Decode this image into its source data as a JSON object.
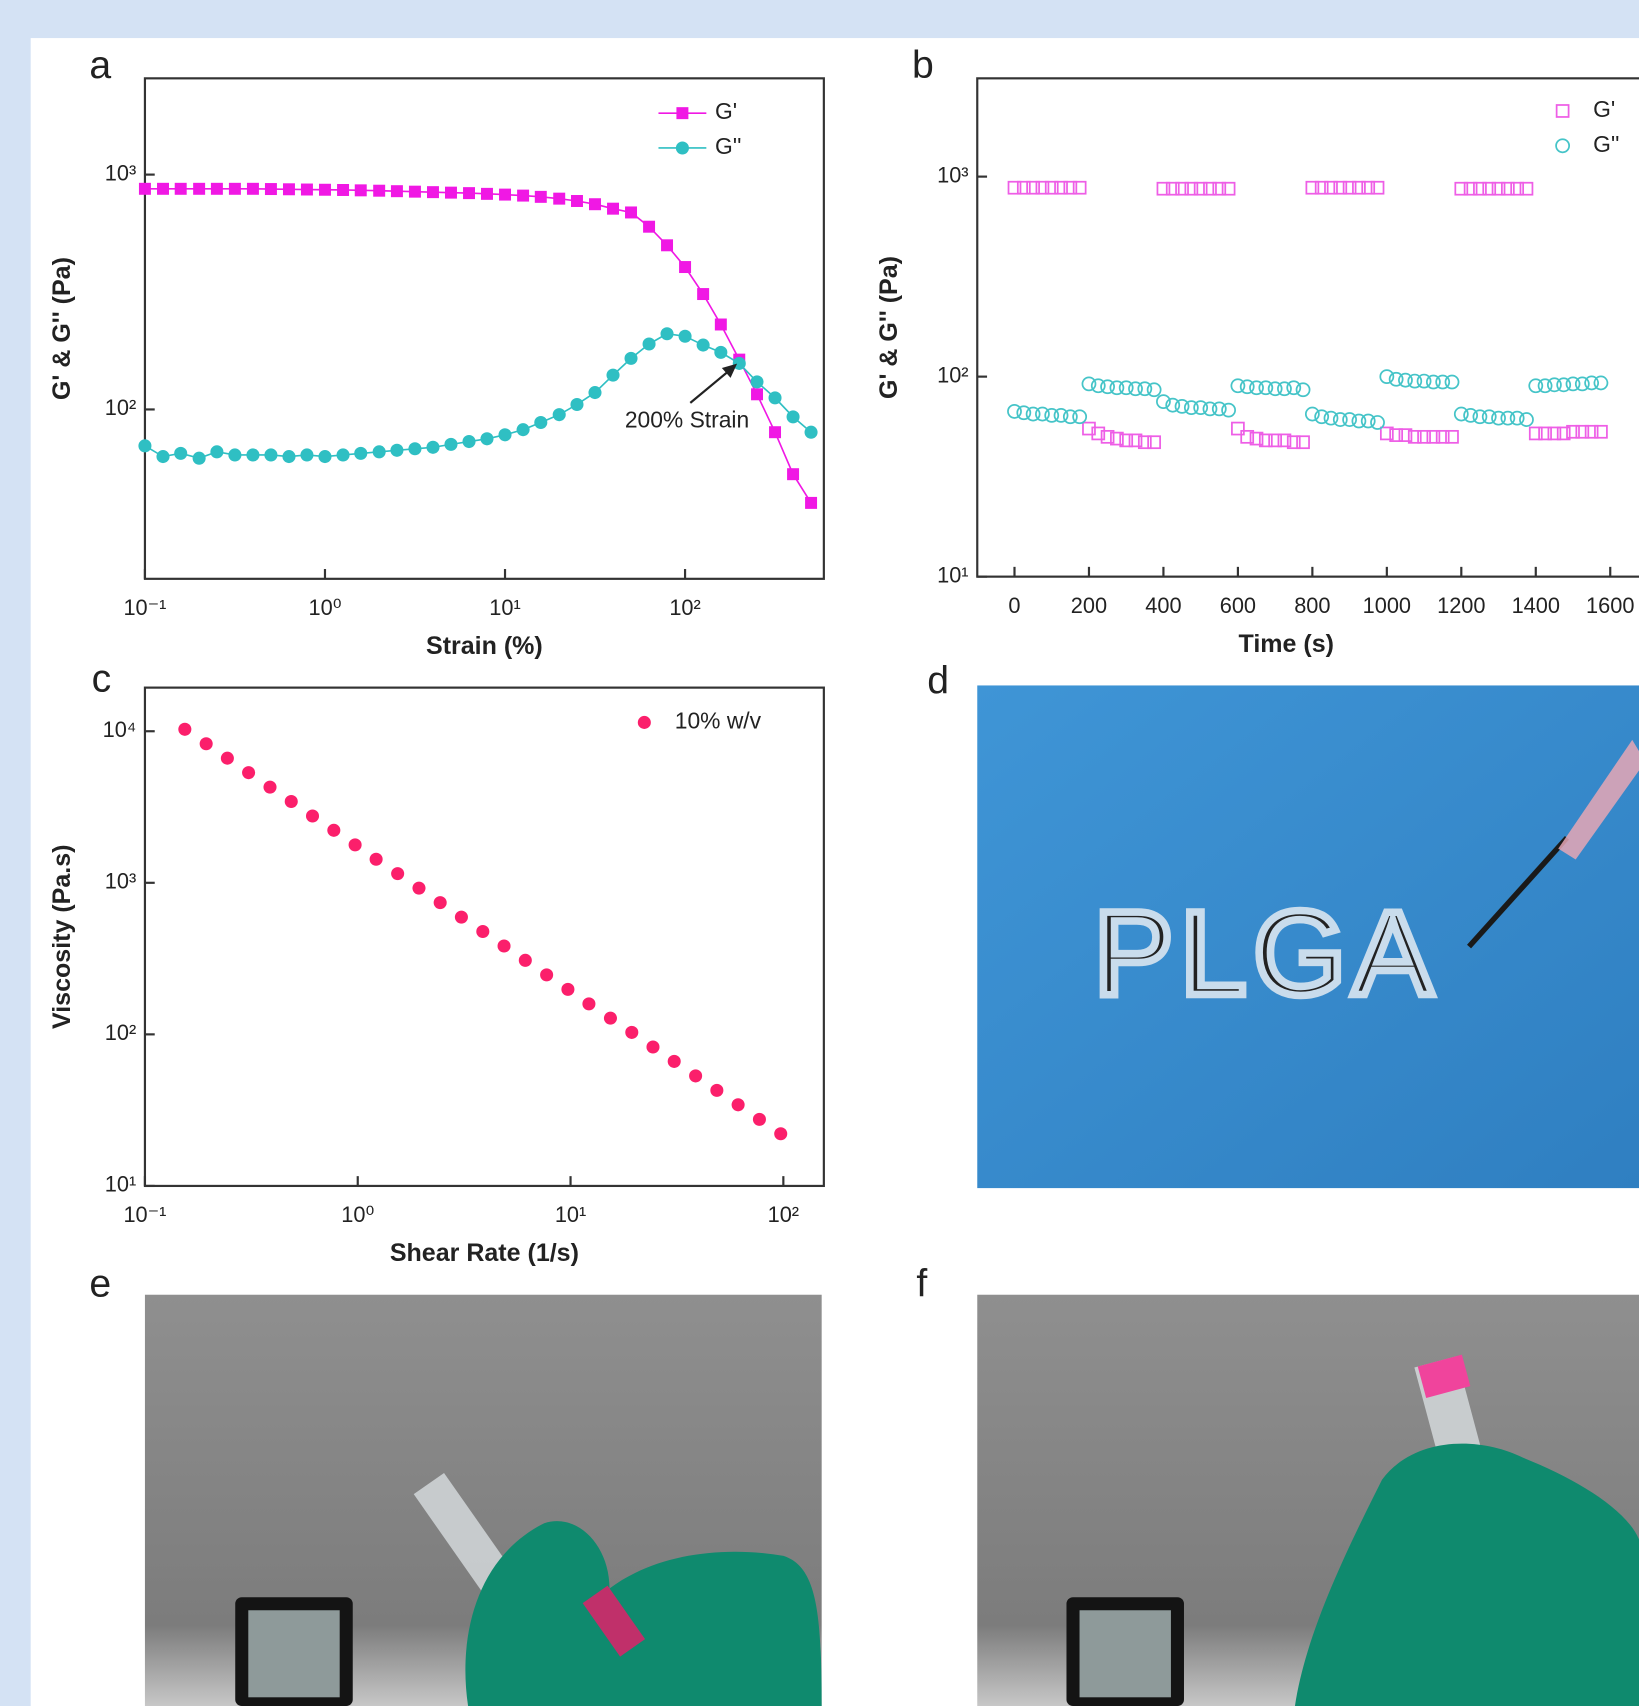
{
  "chart_data": [
    {
      "type": "scatter",
      "panel": "a",
      "xlabel": "Strain (%)",
      "ylabel": "G' & G'' (Pa)",
      "xlog": true,
      "ylog": true,
      "xlim": [
        0.1,
        590
      ],
      "ylim": [
        19,
        2570
      ],
      "xticks": [
        {
          "value": 0.1,
          "label": "10⁻¹"
        },
        {
          "value": 1,
          "label": "10⁰"
        },
        {
          "value": 10,
          "label": "10¹"
        },
        {
          "value": 100,
          "label": "10²"
        }
      ],
      "yticks": [
        {
          "value": 100,
          "label": "10²"
        },
        {
          "value": 1000,
          "label": "10³"
        }
      ],
      "legend": "upper right",
      "x": [
        0.1,
        0.126,
        0.158,
        0.2,
        0.251,
        0.316,
        0.398,
        0.501,
        0.631,
        0.794,
        1,
        1.26,
        1.58,
        2,
        2.51,
        3.16,
        3.98,
        5.01,
        6.31,
        7.94,
        10,
        12.6,
        15.8,
        20,
        25.1,
        31.6,
        39.8,
        50.1,
        63.1,
        79.4,
        100,
        126,
        158,
        200,
        251,
        316,
        398,
        501
      ],
      "series": [
        {
          "name": "G'",
          "color": "#f018e4",
          "marker": "square",
          "filled": true,
          "line": true,
          "values": [
            870,
            870,
            870,
            870,
            870,
            870,
            870,
            868,
            866,
            864,
            862,
            860,
            857,
            854,
            850,
            846,
            842,
            838,
            834,
            828,
            822,
            814,
            804,
            790,
            772,
            748,
            716,
            690,
            600,
            500,
            404,
            310,
            230,
            163,
            116,
            80,
            53,
            40
          ]
        },
        {
          "name": "G''",
          "color": "#2fbfc3",
          "marker": "circle",
          "filled": true,
          "line": true,
          "values": [
            70,
            63,
            65,
            62,
            66,
            64,
            64,
            64,
            63,
            64,
            63,
            64,
            65,
            66,
            67,
            68,
            69,
            71,
            73,
            75,
            78,
            82,
            88,
            95,
            105,
            118,
            140,
            165,
            190,
            210,
            205,
            188,
            175,
            157,
            131,
            112,
            93,
            80
          ]
        }
      ],
      "annotations": [
        {
          "text": "200% Strain",
          "xy": [
            200,
            160
          ]
        }
      ]
    },
    {
      "type": "scatter",
      "panel": "b",
      "xlabel": "Time (s)",
      "ylabel": "G' & G'' (Pa)",
      "ylog": true,
      "xlim": [
        -100,
        1700
      ],
      "ylim": [
        10,
        3100
      ],
      "xticks": [
        0,
        200,
        400,
        600,
        800,
        1000,
        1200,
        1400,
        1600
      ],
      "yticks": [
        {
          "value": 10,
          "label": "10¹"
        },
        {
          "value": 100,
          "label": "10²"
        },
        {
          "value": 1000,
          "label": "10³"
        }
      ],
      "legend": "upper right",
      "x": [
        0,
        25,
        50,
        75,
        100,
        125,
        150,
        175,
        200,
        225,
        250,
        275,
        300,
        325,
        350,
        375,
        400,
        425,
        450,
        475,
        500,
        525,
        550,
        575,
        600,
        625,
        650,
        675,
        700,
        725,
        750,
        775,
        800,
        825,
        850,
        875,
        900,
        925,
        950,
        975,
        1000,
        1025,
        1050,
        1075,
        1100,
        1125,
        1150,
        1175,
        1200,
        1225,
        1250,
        1275,
        1300,
        1325,
        1350,
        1375,
        1400,
        1425,
        1450,
        1475,
        1500,
        1525,
        1550,
        1575
      ],
      "series": [
        {
          "name": "G'",
          "color": "#ee5ee6",
          "marker": "square",
          "filled": false,
          "line": false,
          "values": [
            880,
            880,
            880,
            880,
            880,
            880,
            880,
            880,
            55,
            52,
            50,
            49,
            48,
            48,
            47,
            47,
            870,
            870,
            870,
            870,
            870,
            870,
            870,
            870,
            55,
            50,
            49,
            48,
            48,
            48,
            47,
            47,
            880,
            880,
            880,
            880,
            880,
            880,
            880,
            880,
            52,
            51,
            51,
            50,
            50,
            50,
            50,
            50,
            870,
            870,
            870,
            870,
            870,
            870,
            870,
            870,
            52,
            52,
            52,
            52,
            53,
            53,
            53,
            53
          ]
        },
        {
          "name": "G''",
          "color": "#45c4c8",
          "marker": "circle",
          "filled": false,
          "line": false,
          "values": [
            67,
            66,
            65,
            65,
            64,
            64,
            63,
            63,
            92,
            90,
            89,
            88,
            88,
            87,
            87,
            86,
            75,
            72,
            71,
            70,
            70,
            69,
            69,
            68,
            90,
            89,
            88,
            88,
            87,
            87,
            88,
            86,
            65,
            63,
            62,
            61,
            61,
            60,
            60,
            59,
            100,
            97,
            96,
            95,
            95,
            94,
            94,
            94,
            65,
            64,
            63,
            63,
            62,
            62,
            62,
            61,
            90,
            90,
            91,
            91,
            92,
            92,
            93,
            93
          ]
        }
      ]
    },
    {
      "type": "scatter",
      "panel": "c",
      "xlabel": "Shear Rate (1/s)",
      "ylabel": "Viscosity (Pa.s)",
      "xlog": true,
      "ylog": true,
      "xlim": [
        0.1,
        155
      ],
      "ylim": [
        10,
        19400
      ],
      "xticks": [
        {
          "value": 0.1,
          "label": "10⁻¹"
        },
        {
          "value": 1,
          "label": "10⁰"
        },
        {
          "value": 10,
          "label": "10¹"
        },
        {
          "value": 100,
          "label": "10²"
        }
      ],
      "yticks": [
        {
          "value": 10,
          "label": "10¹"
        },
        {
          "value": 100,
          "label": "10²"
        },
        {
          "value": 1000,
          "label": "10³"
        },
        {
          "value": 10000,
          "label": "10⁴"
        }
      ],
      "legend": "upper right",
      "x": [
        0.154,
        0.194,
        0.244,
        0.307,
        0.387,
        0.487,
        0.613,
        0.772,
        0.972,
        1.22,
        1.54,
        1.94,
        2.44,
        3.07,
        3.87,
        4.87,
        6.13,
        7.72,
        9.72,
        12.2,
        15.4,
        19.4,
        24.4,
        30.7,
        38.7,
        48.7,
        61.3,
        77.2,
        97.2
      ],
      "series": [
        {
          "name": "10% w/v",
          "color": "#fb1f6b",
          "marker": "circle",
          "filled": true,
          "line": false,
          "values": [
            10300,
            8270,
            6640,
            5330,
            4280,
            3440,
            2760,
            2220,
            1780,
            1430,
            1150,
            922,
            740,
            594,
            477,
            383,
            308,
            247,
            198,
            159,
            128,
            103,
            82.5,
            66.3,
            53.2,
            42.7,
            34.3,
            27.5,
            22.1
          ]
        }
      ]
    }
  ],
  "photos": [
    {
      "panel": "d",
      "text": "PLGA"
    },
    {
      "panel": "e"
    },
    {
      "panel": "f"
    }
  ]
}
